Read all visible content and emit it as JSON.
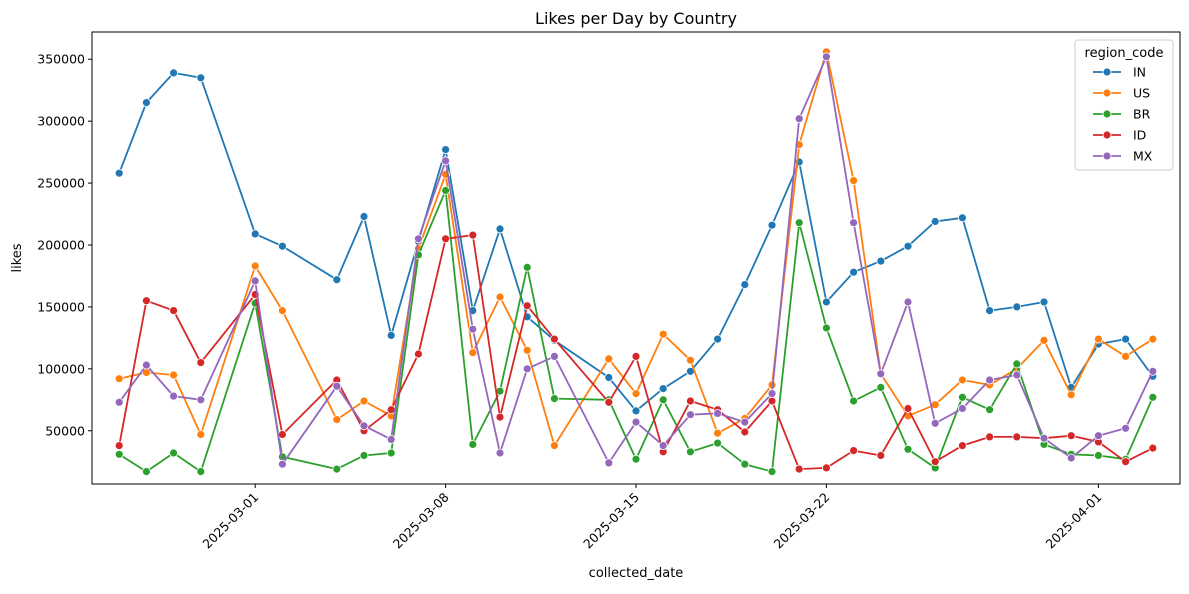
{
  "chart_data": {
    "type": "line",
    "title": "Likes per Day by Country",
    "xlabel": "collected_date",
    "ylabel": "likes",
    "x_tick_labels": [
      "2025-03-01",
      "2025-03-08",
      "2025-03-15",
      "2025-03-22",
      "2025-04-01"
    ],
    "y_tick_labels": [
      "50000",
      "100000",
      "150000",
      "200000",
      "250000",
      "300000",
      "350000"
    ],
    "xlim": [
      "2025-02-23",
      "2025-04-04"
    ],
    "ylim": [
      7000,
      372000
    ],
    "grid": false,
    "legend": {
      "title": "region_code",
      "position": "top-right"
    },
    "marker": "circle",
    "series": [
      {
        "name": "IN",
        "color": "#1f77b4",
        "x": [
          "2025-02-24",
          "2025-02-25",
          "2025-02-26",
          "2025-02-27",
          "2025-03-01",
          "2025-03-02",
          "2025-03-04",
          "2025-03-05",
          "2025-03-06",
          "2025-03-07",
          "2025-03-08",
          "2025-03-09",
          "2025-03-10",
          "2025-03-11",
          "2025-03-12",
          "2025-03-14",
          "2025-03-15",
          "2025-03-16",
          "2025-03-17",
          "2025-03-18",
          "2025-03-19",
          "2025-03-20",
          "2025-03-21",
          "2025-03-22",
          "2025-03-23",
          "2025-03-24",
          "2025-03-25",
          "2025-03-26",
          "2025-03-27",
          "2025-03-28",
          "2025-03-29",
          "2025-03-30",
          "2025-03-31",
          "2025-04-01",
          "2025-04-02",
          "2025-04-03"
        ],
        "y": [
          258000,
          315000,
          339000,
          335000,
          209000,
          199000,
          172000,
          223000,
          127000,
          203000,
          277000,
          147000,
          213000,
          142000,
          123000,
          93000,
          66000,
          84000,
          98000,
          124000,
          168000,
          216000,
          267000,
          154000,
          178000,
          187000,
          199000,
          219000,
          222000,
          147000,
          150000,
          154000,
          85000,
          120000,
          124000,
          94000
        ]
      },
      {
        "name": "US",
        "color": "#ff7f0e",
        "x": [
          "2025-02-24",
          "2025-02-25",
          "2025-02-26",
          "2025-02-27",
          "2025-03-01",
          "2025-03-02",
          "2025-03-04",
          "2025-03-05",
          "2025-03-06",
          "2025-03-07",
          "2025-03-08",
          "2025-03-09",
          "2025-03-10",
          "2025-03-11",
          "2025-03-12",
          "2025-03-14",
          "2025-03-15",
          "2025-03-16",
          "2025-03-17",
          "2025-03-18",
          "2025-03-19",
          "2025-03-20",
          "2025-03-21",
          "2025-03-22",
          "2025-03-23",
          "2025-03-24",
          "2025-03-25",
          "2025-03-26",
          "2025-03-27",
          "2025-03-28",
          "2025-03-29",
          "2025-03-30",
          "2025-03-31",
          "2025-04-01",
          "2025-04-02",
          "2025-04-03"
        ],
        "y": [
          92000,
          97000,
          95000,
          47000,
          183000,
          147000,
          59000,
          74000,
          62000,
          197000,
          257000,
          113000,
          158000,
          115000,
          38000,
          108000,
          80000,
          128000,
          107000,
          48000,
          60000,
          87000,
          281000,
          356000,
          252000,
          96000,
          62000,
          71000,
          91000,
          87000,
          100000,
          123000,
          79000,
          124000,
          110000,
          124000
        ]
      },
      {
        "name": "BR",
        "color": "#2ca02c",
        "x": [
          "2025-02-24",
          "2025-02-25",
          "2025-02-26",
          "2025-02-27",
          "2025-03-01",
          "2025-03-02",
          "2025-03-04",
          "2025-03-05",
          "2025-03-06",
          "2025-03-07",
          "2025-03-08",
          "2025-03-09",
          "2025-03-10",
          "2025-03-11",
          "2025-03-12",
          "2025-03-14",
          "2025-03-15",
          "2025-03-16",
          "2025-03-17",
          "2025-03-18",
          "2025-03-19",
          "2025-03-20",
          "2025-03-21",
          "2025-03-22",
          "2025-03-23",
          "2025-03-24",
          "2025-03-25",
          "2025-03-26",
          "2025-03-27",
          "2025-03-28",
          "2025-03-29",
          "2025-03-30",
          "2025-03-31",
          "2025-04-01",
          "2025-04-02",
          "2025-04-03"
        ],
        "y": [
          31000,
          17000,
          32000,
          17000,
          153000,
          29000,
          19000,
          30000,
          32000,
          192000,
          244000,
          39000,
          82000,
          182000,
          76000,
          75000,
          27000,
          75000,
          33000,
          40000,
          23000,
          17000,
          218000,
          133000,
          74000,
          85000,
          35000,
          20000,
          77000,
          67000,
          104000,
          39000,
          31000,
          30000,
          27000,
          77000
        ]
      },
      {
        "name": "ID",
        "color": "#d62728",
        "x": [
          "2025-02-24",
          "2025-02-25",
          "2025-02-26",
          "2025-02-27",
          "2025-03-01",
          "2025-03-02",
          "2025-03-04",
          "2025-03-05",
          "2025-03-06",
          "2025-03-07",
          "2025-03-08",
          "2025-03-09",
          "2025-03-10",
          "2025-03-11",
          "2025-03-12",
          "2025-03-14",
          "2025-03-15",
          "2025-03-16",
          "2025-03-17",
          "2025-03-18",
          "2025-03-19",
          "2025-03-20",
          "2025-03-21",
          "2025-03-22",
          "2025-03-23",
          "2025-03-24",
          "2025-03-25",
          "2025-03-26",
          "2025-03-27",
          "2025-03-28",
          "2025-03-29",
          "2025-03-30",
          "2025-03-31",
          "2025-04-01",
          "2025-04-02",
          "2025-04-03"
        ],
        "y": [
          38000,
          155000,
          147000,
          105000,
          160000,
          47000,
          91000,
          50000,
          67000,
          112000,
          205000,
          208000,
          61000,
          151000,
          124000,
          73000,
          110000,
          33000,
          74000,
          67000,
          49000,
          74000,
          19000,
          20000,
          34000,
          30000,
          68000,
          25000,
          38000,
          45000,
          45000,
          44000,
          46000,
          41000,
          25000,
          36000
        ]
      },
      {
        "name": "MX",
        "color": "#9467bd",
        "x": [
          "2025-02-24",
          "2025-02-25",
          "2025-02-26",
          "2025-02-27",
          "2025-03-01",
          "2025-03-02",
          "2025-03-04",
          "2025-03-05",
          "2025-03-06",
          "2025-03-07",
          "2025-03-08",
          "2025-03-09",
          "2025-03-10",
          "2025-03-11",
          "2025-03-12",
          "2025-03-14",
          "2025-03-15",
          "2025-03-16",
          "2025-03-17",
          "2025-03-18",
          "2025-03-19",
          "2025-03-20",
          "2025-03-21",
          "2025-03-22",
          "2025-03-23",
          "2025-03-24",
          "2025-03-25",
          "2025-03-26",
          "2025-03-27",
          "2025-03-28",
          "2025-03-29",
          "2025-03-30",
          "2025-03-31",
          "2025-04-01",
          "2025-04-02",
          "2025-04-03"
        ],
        "y": [
          73000,
          103000,
          78000,
          75000,
          171000,
          23000,
          86000,
          54000,
          43000,
          205000,
          268000,
          132000,
          32000,
          100000,
          110000,
          24000,
          57000,
          38000,
          63000,
          64000,
          57000,
          80000,
          302000,
          352000,
          218000,
          96000,
          154000,
          56000,
          68000,
          91000,
          95000,
          44000,
          28000,
          46000,
          52000,
          98000
        ]
      }
    ]
  }
}
